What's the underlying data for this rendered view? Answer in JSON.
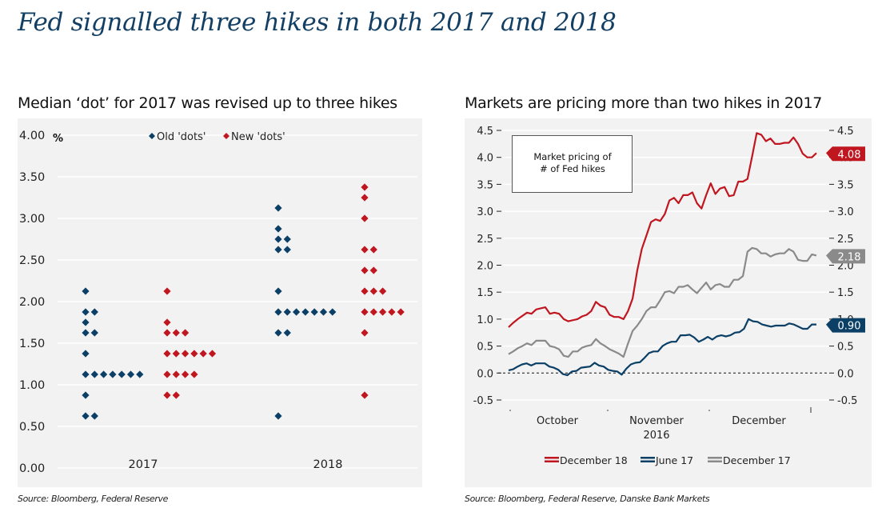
{
  "main_title": "Fed signalled three hikes in both 2017 and 2018",
  "left": {
    "title": "Median ‘dot’ for 2017 was revised up to three hikes",
    "source": "Source: Bloomberg, Federal Reserve"
  },
  "right": {
    "title": "Markets are pricing more than two hikes in 2017",
    "source": "Source: Bloomberg, Federal Reserve, Danske Bank Markets"
  },
  "colors": {
    "navy": "#0b3f66",
    "red": "#c0161f",
    "grey": "#8a8a8a"
  },
  "chart_data": [
    {
      "type": "scatter",
      "title": "Median ‘dot’ for 2017 was revised up to three hikes",
      "ylabel": "%",
      "ylim": [
        0,
        4
      ],
      "yticks": [
        "0.00",
        "0.50",
        "1.00",
        "1.50",
        "2.00",
        "2.50",
        "3.00",
        "3.50",
        "4.00"
      ],
      "categories": [
        "2017",
        "2018"
      ],
      "legend": {
        "position": "top-center",
        "entries": [
          "Old 'dots'",
          "New 'dots'"
        ]
      },
      "grid": true,
      "series": [
        {
          "name": "Old 'dots'",
          "color": "#0b3f66",
          "points": {
            "2017": [
              [
                2.125,
                1
              ],
              [
                1.875,
                2
              ],
              [
                1.75,
                1
              ],
              [
                1.625,
                2
              ],
              [
                1.375,
                1
              ],
              [
                1.125,
                7
              ],
              [
                0.875,
                1
              ],
              [
                0.625,
                2
              ]
            ],
            "2018": [
              [
                3.125,
                1
              ],
              [
                2.875,
                1
              ],
              [
                2.75,
                2
              ],
              [
                2.625,
                2
              ],
              [
                2.125,
                1
              ],
              [
                1.875,
                7
              ],
              [
                1.625,
                2
              ],
              [
                0.625,
                1
              ]
            ]
          }
        },
        {
          "name": "New 'dots'",
          "color": "#c0161f",
          "points": {
            "2017": [
              [
                2.125,
                1
              ],
              [
                1.75,
                1
              ],
              [
                1.625,
                3
              ],
              [
                1.375,
                6
              ],
              [
                1.125,
                4
              ],
              [
                0.875,
                2
              ]
            ],
            "2018": [
              [
                3.375,
                1
              ],
              [
                3.25,
                1
              ],
              [
                3.0,
                1
              ],
              [
                2.625,
                2
              ],
              [
                2.375,
                2
              ],
              [
                2.125,
                3
              ],
              [
                1.875,
                5
              ],
              [
                1.625,
                1
              ],
              [
                0.875,
                1
              ]
            ]
          }
        }
      ]
    },
    {
      "type": "line",
      "title": "Markets are pricing more than two hikes in 2017",
      "annotation": "Market pricing of # of Fed hikes",
      "xlabel": "2016",
      "xticks": [
        "October",
        "November",
        "December"
      ],
      "ylim": [
        -0.5,
        4.5
      ],
      "yticks": [
        "-0.5",
        "0.0",
        "0.5",
        "1.0",
        "1.5",
        "2.0",
        "2.5",
        "3.0",
        "3.5",
        "4.0",
        "4.5"
      ],
      "grid": true,
      "legend": {
        "position": "bottom-center",
        "entries": [
          "December 18",
          "June 17",
          "December 17"
        ]
      },
      "series": [
        {
          "name": "December 18",
          "color": "#c0161f",
          "end_label": "4.08",
          "values": [
            0.85,
            0.93,
            1.0,
            1.06,
            1.12,
            1.1,
            1.18,
            1.2,
            1.22,
            1.1,
            1.12,
            1.1,
            1.0,
            0.96,
            0.98,
            1.0,
            1.05,
            1.08,
            1.15,
            1.32,
            1.25,
            1.22,
            1.08,
            1.04,
            1.04,
            1.0,
            1.15,
            1.38,
            1.9,
            2.3,
            2.55,
            2.8,
            2.85,
            2.82,
            2.95,
            3.2,
            3.25,
            3.15,
            3.3,
            3.3,
            3.35,
            3.15,
            3.05,
            3.3,
            3.52,
            3.32,
            3.42,
            3.45,
            3.28,
            3.3,
            3.55,
            3.55,
            3.6,
            4.02,
            4.45,
            4.42,
            4.3,
            4.35,
            4.25,
            4.25,
            4.27,
            4.27,
            4.37,
            4.25,
            4.07,
            4.0,
            4.0,
            4.08
          ]
        },
        {
          "name": "June 17",
          "color": "#0b3f66",
          "end_label": "0.90",
          "values": [
            0.05,
            0.07,
            0.12,
            0.16,
            0.18,
            0.14,
            0.18,
            0.18,
            0.18,
            0.12,
            0.1,
            0.06,
            -0.02,
            -0.04,
            0.03,
            0.04,
            0.1,
            0.11,
            0.12,
            0.19,
            0.14,
            0.12,
            0.06,
            0.04,
            0.03,
            -0.03,
            0.08,
            0.16,
            0.19,
            0.2,
            0.28,
            0.37,
            0.4,
            0.4,
            0.5,
            0.55,
            0.58,
            0.58,
            0.7,
            0.7,
            0.71,
            0.66,
            0.58,
            0.62,
            0.67,
            0.62,
            0.68,
            0.7,
            0.68,
            0.7,
            0.75,
            0.76,
            0.82,
            1.0,
            0.96,
            0.95,
            0.9,
            0.88,
            0.86,
            0.88,
            0.88,
            0.88,
            0.92,
            0.9,
            0.86,
            0.82,
            0.82,
            0.9,
            0.9
          ]
        },
        {
          "name": "December 17",
          "color": "#8a8a8a",
          "end_label": "2.18",
          "values": [
            0.35,
            0.4,
            0.46,
            0.5,
            0.55,
            0.52,
            0.6,
            0.6,
            0.6,
            0.5,
            0.48,
            0.44,
            0.32,
            0.3,
            0.4,
            0.4,
            0.47,
            0.5,
            0.52,
            0.63,
            0.55,
            0.5,
            0.44,
            0.4,
            0.36,
            0.3,
            0.55,
            0.78,
            0.88,
            1.0,
            1.15,
            1.22,
            1.22,
            1.35,
            1.5,
            1.52,
            1.48,
            1.6,
            1.6,
            1.63,
            1.55,
            1.48,
            1.58,
            1.68,
            1.55,
            1.63,
            1.65,
            1.6,
            1.6,
            1.73,
            1.73,
            1.8,
            2.25,
            2.32,
            2.3,
            2.22,
            2.22,
            2.16,
            2.2,
            2.22,
            2.22,
            2.3,
            2.25,
            2.1,
            2.08,
            2.08,
            2.2,
            2.18
          ]
        }
      ]
    }
  ]
}
